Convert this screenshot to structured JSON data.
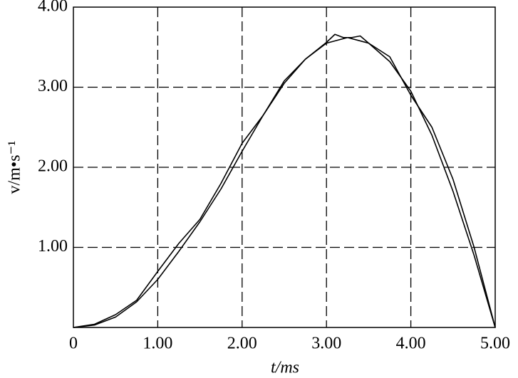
{
  "chart_data": {
    "type": "line",
    "xlabel": "t/ms",
    "ylabel": "v/m•s⁻¹",
    "xlim": [
      0,
      5
    ],
    "ylim": [
      0,
      4
    ],
    "xticks": [
      0,
      {
        "value": 1,
        "label": "1.00"
      },
      {
        "value": 2,
        "label": "2.00"
      },
      {
        "value": 3,
        "label": "3.00"
      },
      {
        "value": 4,
        "label": "4.00"
      },
      {
        "value": 5,
        "label": "5.00"
      }
    ],
    "yticks": [
      {
        "value": 1,
        "label": "1.00"
      },
      {
        "value": 2,
        "label": "2.00"
      },
      {
        "value": 3,
        "label": "3.00"
      },
      {
        "value": 4,
        "label": "4.00"
      }
    ],
    "grid": true,
    "series": [
      {
        "color": "#000000",
        "x": [
          0,
          0.25,
          0.5,
          0.75,
          1.0,
          1.25,
          1.5,
          1.75,
          2.0,
          2.25,
          2.5,
          2.75,
          3.0,
          3.25,
          3.5,
          3.75,
          4.0,
          4.25,
          4.5,
          4.75,
          5.0
        ],
        "values": [
          0,
          0.03,
          0.13,
          0.32,
          0.6,
          0.95,
          1.32,
          1.73,
          2.2,
          2.65,
          3.05,
          3.35,
          3.55,
          3.62,
          3.55,
          3.32,
          2.95,
          2.4,
          1.7,
          0.9,
          0
        ]
      },
      {
        "color": "#000000",
        "x": [
          0,
          0.25,
          0.5,
          0.75,
          1.0,
          1.25,
          1.5,
          1.75,
          2.0,
          2.25,
          2.5,
          2.75,
          3.0,
          3.1,
          3.2,
          3.3,
          3.4,
          3.5,
          3.75,
          4.0,
          4.25,
          4.5,
          4.75,
          5.0
        ],
        "values": [
          0,
          0.04,
          0.16,
          0.34,
          0.7,
          1.05,
          1.35,
          1.8,
          2.3,
          2.65,
          3.08,
          3.35,
          3.56,
          3.66,
          3.62,
          3.62,
          3.64,
          3.55,
          3.38,
          2.9,
          2.5,
          1.85,
          1.0,
          0
        ]
      }
    ]
  }
}
